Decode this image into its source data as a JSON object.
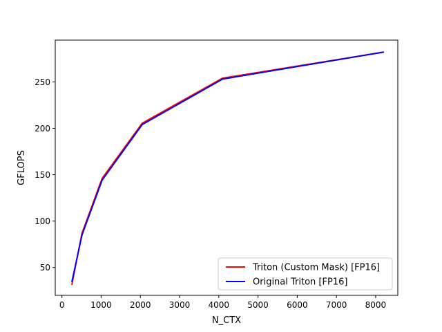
{
  "chart_data": {
    "type": "line",
    "title": "",
    "xlabel": "N_CTX",
    "ylabel": "GFLOPS",
    "xlim": [
      -170,
      8565
    ],
    "ylim": [
      20,
      295
    ],
    "xticks": [
      0,
      1000,
      2000,
      3000,
      4000,
      5000,
      6000,
      7000,
      8000
    ],
    "yticks": [
      50,
      100,
      150,
      200,
      250
    ],
    "grid": false,
    "legend_position": "lower right",
    "x": [
      256,
      512,
      1024,
      2048,
      4096,
      8192
    ],
    "series": [
      {
        "name": "Triton (Custom Mask) [FP16]",
        "color": "#ff0000",
        "values": [
          32,
          87,
          146,
          205.5,
          254,
          282
        ]
      },
      {
        "name": "Original Triton [FP16]",
        "color": "#0000ff",
        "values": [
          35,
          85,
          144,
          204,
          253,
          282
        ]
      }
    ]
  }
}
